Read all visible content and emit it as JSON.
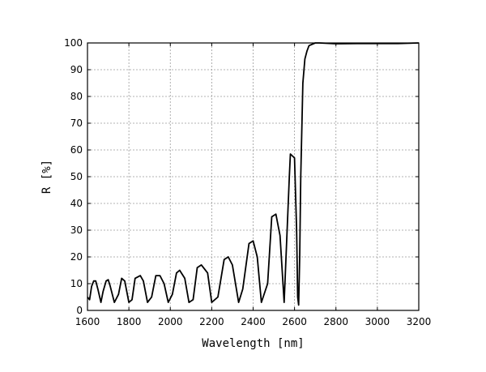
{
  "chart_data": {
    "type": "line",
    "title": "",
    "xlabel": "Wavelength [nm]",
    "ylabel": "R [%]",
    "xlim": [
      1600,
      3200
    ],
    "ylim": [
      0,
      100
    ],
    "x_ticks": [
      1600,
      1800,
      2000,
      2200,
      2400,
      2600,
      2800,
      3000,
      3200
    ],
    "y_ticks": [
      0,
      10,
      20,
      30,
      40,
      50,
      60,
      70,
      80,
      90,
      100
    ],
    "grid": true,
    "legend": "none",
    "line_color": "#000000",
    "series": [
      {
        "x": [
          1600,
          1610,
          1620,
          1630,
          1640,
          1650,
          1665,
          1675,
          1690,
          1700,
          1710,
          1730,
          1750,
          1765,
          1780,
          1800,
          1815,
          1830,
          1855,
          1870,
          1890,
          1910,
          1930,
          1950,
          1970,
          1990,
          2010,
          2030,
          2045,
          2070,
          2090,
          2110,
          2130,
          2150,
          2180,
          2200,
          2230,
          2260,
          2280,
          2300,
          2330,
          2350,
          2380,
          2400,
          2420,
          2440,
          2470,
          2490,
          2510,
          2530,
          2550,
          2575,
          2580,
          2600,
          2610,
          2615,
          2620,
          2625,
          2630,
          2640,
          2650,
          2660,
          2670,
          2700,
          2720,
          2800,
          2900,
          3000,
          3100,
          3200
        ],
        "y": [
          5,
          4,
          9,
          11,
          11,
          8,
          3,
          7,
          11,
          11.5,
          9,
          3,
          6,
          12,
          11,
          3,
          4,
          12,
          13,
          11,
          3,
          5,
          13,
          13,
          10,
          3,
          6,
          14,
          15,
          12,
          3,
          4,
          16,
          17,
          14,
          3,
          5,
          19,
          20,
          17,
          3,
          8,
          25,
          26,
          20,
          3,
          10,
          35,
          36,
          28,
          3,
          50,
          58.5,
          57,
          30,
          5,
          2,
          20,
          50,
          85,
          94,
          97,
          99,
          100,
          100,
          99.7,
          99.8,
          99.8,
          99.8,
          100
        ]
      }
    ]
  }
}
